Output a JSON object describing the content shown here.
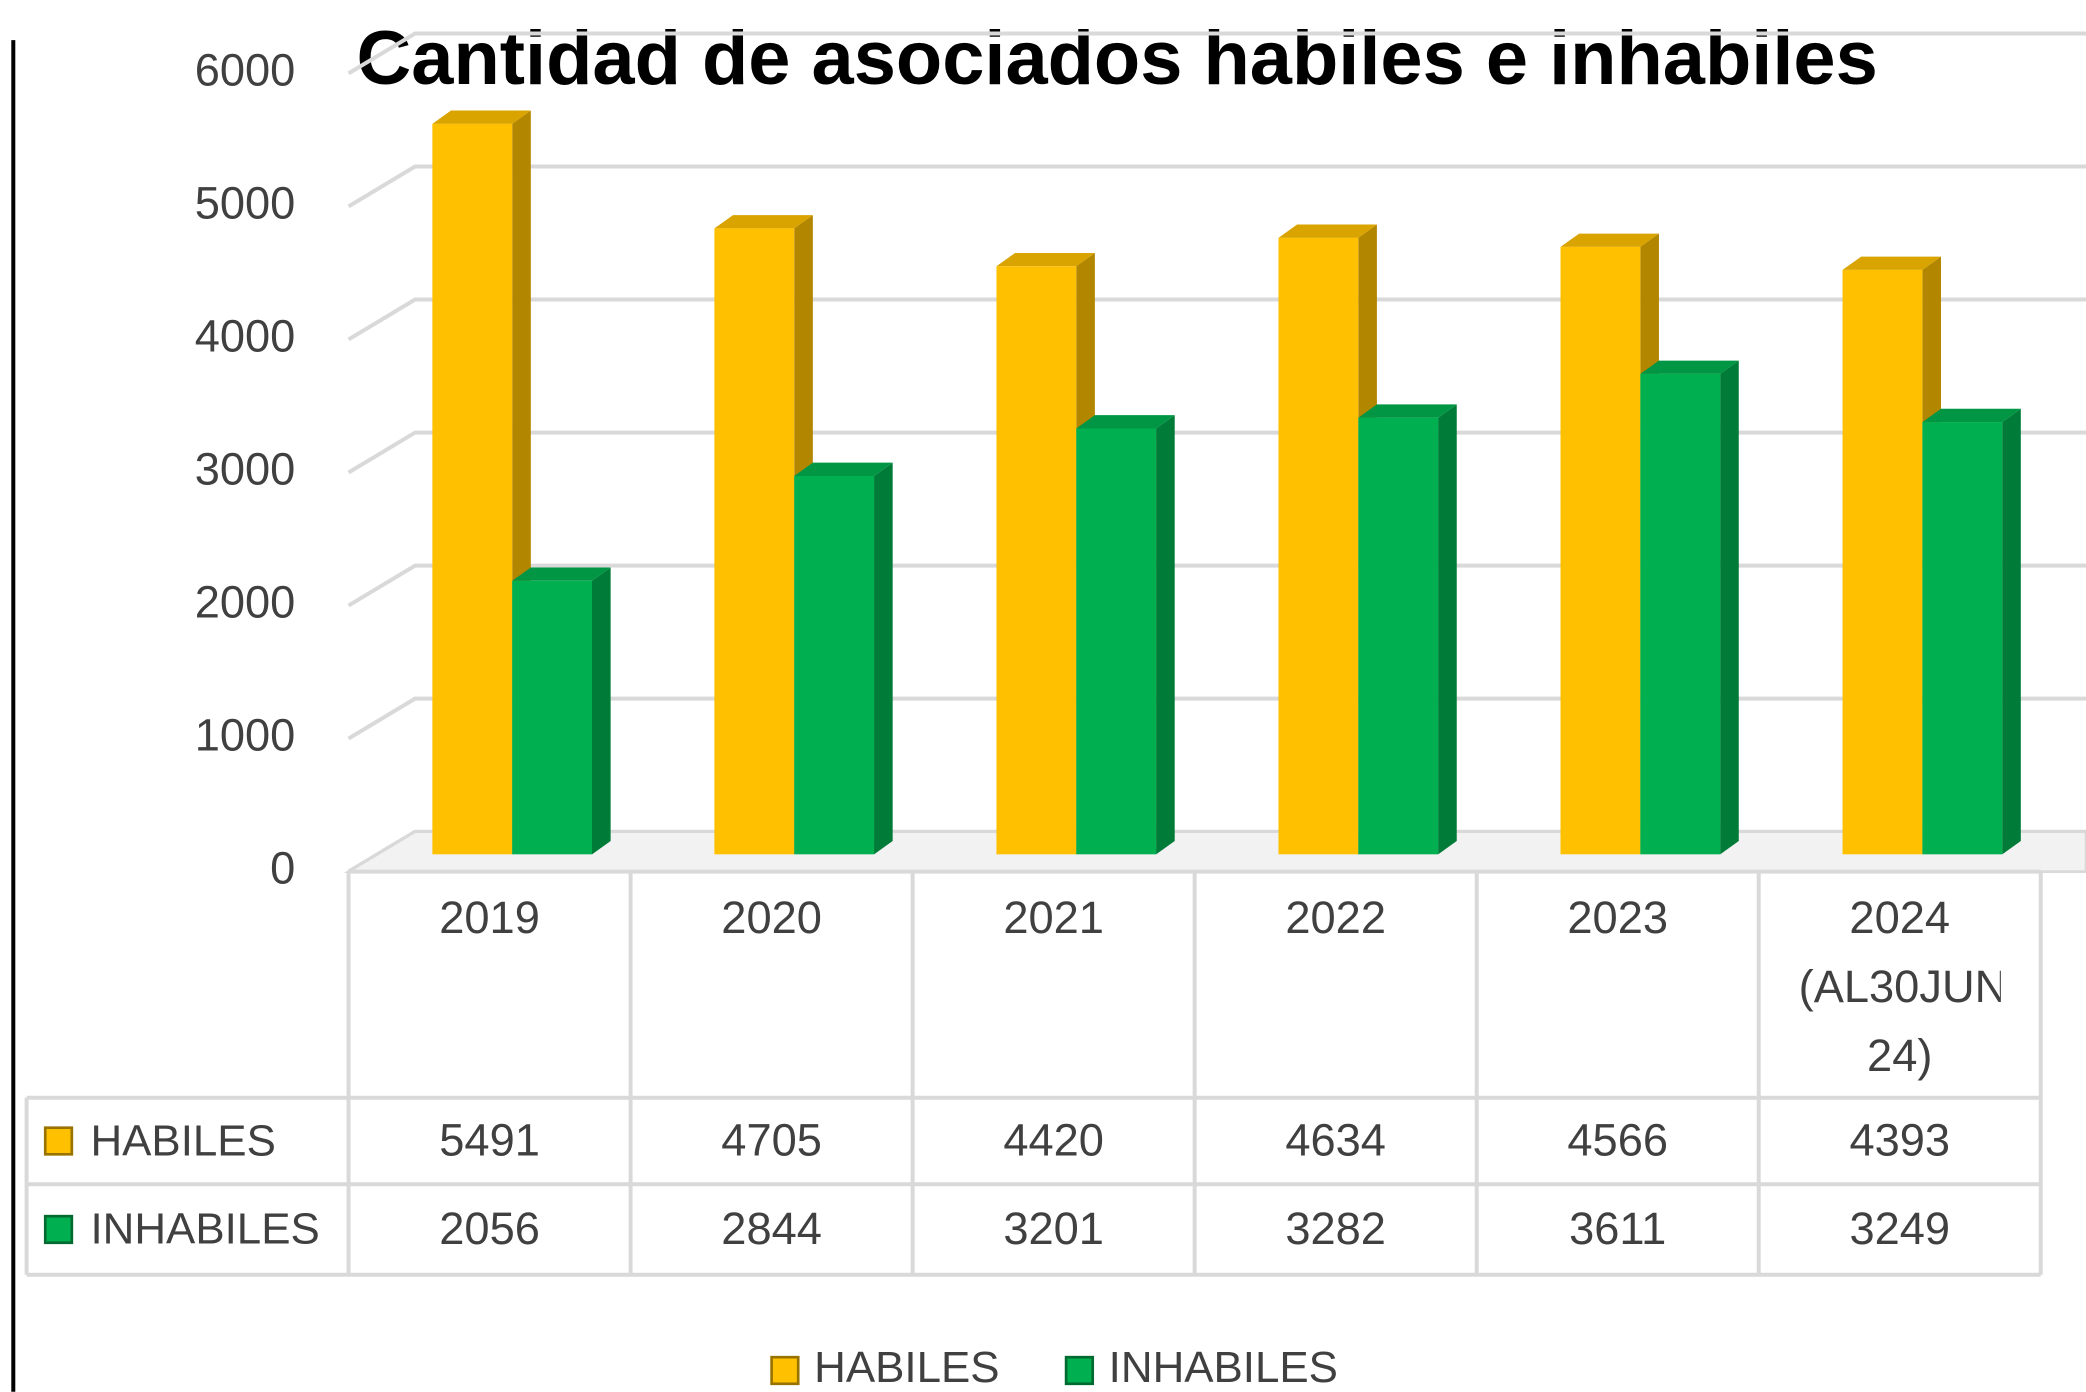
{
  "chart_data": {
    "type": "bar3d",
    "title": "Cantidad de asociados habiles e inhabiles",
    "categories": [
      "2019",
      "2020",
      "2021",
      "2022",
      "2023",
      "2024 (AL30JUN 24)"
    ],
    "series": [
      {
        "name": "HABILES",
        "color": "#FFC000",
        "values": [
          5491,
          4705,
          4420,
          4634,
          4566,
          4393
        ]
      },
      {
        "name": "INHABILES",
        "color": "#00B050",
        "values": [
          2056,
          2844,
          3201,
          3282,
          3611,
          3249
        ]
      }
    ],
    "ylim": [
      0,
      6000
    ],
    "yticks": [
      0,
      1000,
      2000,
      3000,
      4000,
      5000,
      6000
    ],
    "grid": true,
    "legend": "bottom",
    "data_table": true
  }
}
